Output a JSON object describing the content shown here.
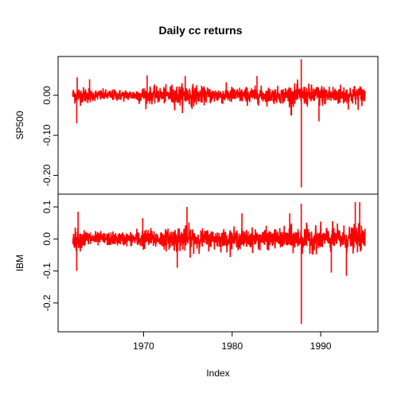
{
  "chart_data": {
    "type": "line",
    "title": "Daily cc returns",
    "xlabel": "Index",
    "x_range": [
      1961.6,
      1995.2
    ],
    "x_ticks": [
      1970,
      1980,
      1990
    ],
    "x_tick_labels": [
      "1970",
      "1980",
      "1990"
    ],
    "series_color": "#ff0000",
    "panels": [
      {
        "name": "SP500",
        "ylabel": "SP500",
        "ylim": [
          -0.235,
          0.085
        ],
        "y_ticks": [
          0.0,
          -0.1,
          -0.2
        ],
        "y_tick_labels": [
          "0.00",
          "-0.10",
          "-0.20"
        ],
        "approx_baseline_noise": 0.01,
        "notable_points": [
          {
            "x": 1962.45,
            "y": -0.07
          },
          {
            "x": 1962.5,
            "y": 0.045
          },
          {
            "x": 1963.9,
            "y": 0.04
          },
          {
            "x": 1970.4,
            "y": 0.05
          },
          {
            "x": 1974.7,
            "y": 0.048
          },
          {
            "x": 1982.8,
            "y": 0.048
          },
          {
            "x": 1986.7,
            "y": -0.05
          },
          {
            "x": 1987.8,
            "y": 0.09
          },
          {
            "x": 1987.81,
            "y": -0.23
          },
          {
            "x": 1989.8,
            "y": -0.065
          }
        ]
      },
      {
        "name": "IBM",
        "ylabel": "IBM",
        "ylim": [
          -0.275,
          0.125
        ],
        "y_ticks": [
          0.1,
          0.0,
          -0.1,
          -0.2
        ],
        "y_tick_labels": [
          "0.1",
          "0.0",
          "-0.1",
          "-0.2"
        ],
        "approx_baseline_noise": 0.015,
        "notable_points": [
          {
            "x": 1962.45,
            "y": -0.1
          },
          {
            "x": 1962.6,
            "y": 0.085
          },
          {
            "x": 1969.9,
            "y": 0.065
          },
          {
            "x": 1973.8,
            "y": -0.09
          },
          {
            "x": 1974.9,
            "y": 0.1
          },
          {
            "x": 1981.1,
            "y": 0.08
          },
          {
            "x": 1986.5,
            "y": 0.08
          },
          {
            "x": 1987.8,
            "y": 0.11
          },
          {
            "x": 1987.81,
            "y": -0.265
          },
          {
            "x": 1991.2,
            "y": -0.105
          },
          {
            "x": 1992.9,
            "y": -0.115
          },
          {
            "x": 1993.9,
            "y": 0.115
          },
          {
            "x": 1994.4,
            "y": 0.115
          }
        ]
      }
    ]
  }
}
